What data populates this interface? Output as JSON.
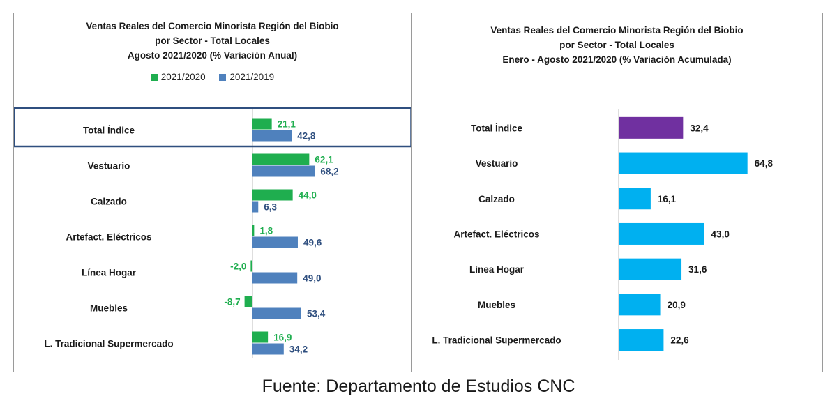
{
  "chart_data": [
    {
      "type": "bar",
      "orientation": "horizontal",
      "title": [
        "Ventas Reales del Comercio Minorista  Región del Biobio",
        "por Sector - Total Locales",
        "Agosto 2021/2020 (% Variación Anual)"
      ],
      "categories": [
        "Total Índice",
        "Vestuario",
        "Calzado",
        "Artefact. Eléctricos",
        "Línea Hogar",
        "Muebles",
        "L. Tradicional Supermercado"
      ],
      "series": [
        {
          "name": "2021/2020",
          "color": "#1fae4f",
          "label_color": "#1fae4f",
          "values": [
            21.1,
            62.1,
            44.0,
            1.8,
            -2.0,
            -8.7,
            16.9
          ],
          "labels": [
            "21,1",
            "62,1",
            "44,0",
            "1,8",
            "-2,0",
            "-8,7",
            "16,9"
          ]
        },
        {
          "name": "2021/2019",
          "color": "#4f81bd",
          "label_color": "#2f4f7f",
          "values": [
            42.8,
            68.2,
            6.3,
            49.6,
            49.0,
            53.4,
            34.2
          ],
          "labels": [
            "42,8",
            "68,2",
            "6,3",
            "49,6",
            "49,0",
            "53,4",
            "34,2"
          ]
        }
      ],
      "legend": "top",
      "grid": false,
      "highlighted_category": "Total Índice"
    },
    {
      "type": "bar",
      "orientation": "horizontal",
      "title": [
        "Ventas Reales del Comercio Minorista Región del Biobio",
        "por Sector - Total Locales",
        "Enero - Agosto 2021/2020  (% Variación Acumulada)"
      ],
      "categories": [
        "Total Índice",
        "Vestuario",
        "Calzado",
        "Artefact. Eléctricos",
        "Línea Hogar",
        "Muebles",
        "L. Tradicional Supermercado"
      ],
      "values": [
        32.4,
        64.8,
        16.1,
        43.0,
        31.6,
        20.9,
        22.6
      ],
      "labels": [
        "32,4",
        "64,8",
        "16,1",
        "43,0",
        "31,6",
        "20,9",
        "22,6"
      ],
      "colors": [
        "#7030a0",
        "#00b0f0",
        "#00b0f0",
        "#00b0f0",
        "#00b0f0",
        "#00b0f0",
        "#00b0f0"
      ],
      "label_color": "#1a1a1a",
      "grid": false
    }
  ],
  "footer": "Fuente: Departamento de Estudios CNC"
}
